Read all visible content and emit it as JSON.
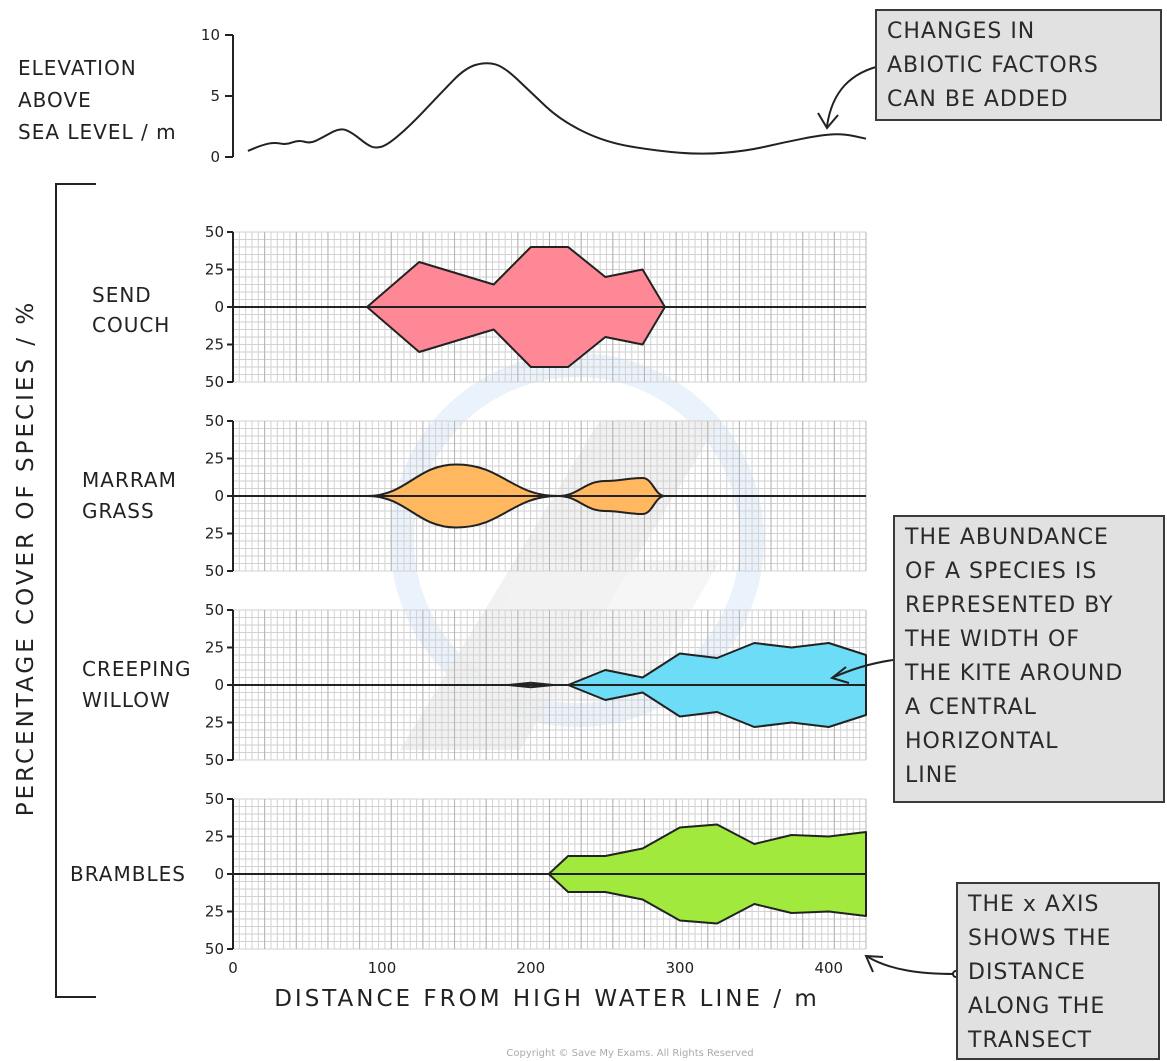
{
  "elevation": {
    "label_lines": [
      "ELEVATION",
      "ABOVE",
      "SEA LEVEL / m"
    ],
    "y_ticks": [
      "10",
      "5",
      "0"
    ]
  },
  "y_axis_label": "PERCENTAGE COVER OF SPECIES / %",
  "x_axis_label": "DISTANCE FROM HIGH WATER LINE / m",
  "x_ticks": [
    "0",
    "100",
    "200",
    "300",
    "400"
  ],
  "panel_ticks": [
    "50",
    "25",
    "0",
    "25",
    "50"
  ],
  "callouts": {
    "abiotic": [
      "CHANGES IN",
      "ABIOTIC FACTORS",
      "CAN BE ADDED"
    ],
    "abundance": [
      "THE ABUNDANCE",
      "OF A SPECIES IS",
      "REPRESENTED BY",
      "THE WIDTH OF",
      "THE KITE AROUND",
      "A CENTRAL",
      "HORIZONTAL",
      "LINE"
    ],
    "x_axis": [
      "THE x AXIS",
      "SHOWS THE",
      "DISTANCE",
      "ALONG THE",
      "TRANSECT"
    ]
  },
  "copyright": "Copyright © Save My Exams. All Rights Reserved",
  "chart_data": {
    "type": "kite",
    "x_label": "DISTANCE FROM HIGH WATER LINE / m",
    "y_label": "PERCENTAGE COVER OF SPECIES / %",
    "x_range": [
      0,
      425
    ],
    "cover_range": [
      0,
      50
    ],
    "elevation_profile": {
      "ylim": [
        0,
        10
      ],
      "points": [
        [
          10,
          0.5
        ],
        [
          20,
          1.0
        ],
        [
          28,
          1.2
        ],
        [
          36,
          1.0
        ],
        [
          44,
          1.4
        ],
        [
          52,
          1.1
        ],
        [
          60,
          1.6
        ],
        [
          72,
          2.4
        ],
        [
          80,
          2.0
        ],
        [
          90,
          1.0
        ],
        [
          96,
          0.7
        ],
        [
          104,
          1.0
        ],
        [
          120,
          2.7
        ],
        [
          140,
          5.3
        ],
        [
          156,
          7.3
        ],
        [
          170,
          7.8
        ],
        [
          182,
          7.4
        ],
        [
          200,
          5.3
        ],
        [
          220,
          3.0
        ],
        [
          250,
          1.2
        ],
        [
          285,
          0.5
        ],
        [
          315,
          0.2
        ],
        [
          345,
          0.5
        ],
        [
          370,
          1.2
        ],
        [
          395,
          1.8
        ],
        [
          410,
          1.9
        ],
        [
          425,
          1.5
        ]
      ]
    },
    "series": [
      {
        "name": "SEND COUCH",
        "color": "#ff8896",
        "points": [
          [
            90,
            0
          ],
          [
            125,
            30
          ],
          [
            175,
            15
          ],
          [
            200,
            40
          ],
          [
            225,
            40
          ],
          [
            250,
            20
          ],
          [
            275,
            25
          ],
          [
            290,
            0
          ]
        ]
      },
      {
        "name": "MARRAM GRASS",
        "color": "#ffb85f",
        "curved": true,
        "points": [
          [
            90,
            0
          ],
          [
            150,
            21
          ],
          [
            218,
            0
          ],
          [
            250,
            10
          ],
          [
            275,
            12
          ],
          [
            290,
            0
          ]
        ]
      },
      {
        "name": "CREEPING WILLOW",
        "color": "#6cdcf7",
        "points": [
          [
            185,
            0
          ],
          [
            200,
            1.5
          ],
          [
            215,
            0
          ],
          [
            225,
            0
          ],
          [
            250,
            10
          ],
          [
            275,
            5
          ],
          [
            300,
            21
          ],
          [
            325,
            18
          ],
          [
            350,
            28
          ],
          [
            375,
            25
          ],
          [
            400,
            28
          ],
          [
            425,
            20
          ]
        ]
      },
      {
        "name": "BRAMBLES",
        "color": "#a1ea3d",
        "points": [
          [
            212,
            0
          ],
          [
            225,
            12
          ],
          [
            250,
            12
          ],
          [
            275,
            17
          ],
          [
            300,
            31
          ],
          [
            325,
            33
          ],
          [
            350,
            20
          ],
          [
            375,
            26
          ],
          [
            400,
            25
          ],
          [
            425,
            28
          ]
        ]
      }
    ]
  }
}
